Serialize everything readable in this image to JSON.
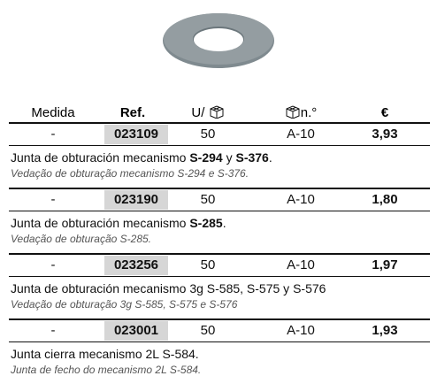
{
  "header": {
    "columns": [
      "Medida",
      "Ref.",
      "U/",
      "n.°",
      "€"
    ]
  },
  "rows": [
    {
      "medida": "-",
      "ref": "023109",
      "units": "50",
      "box": "A-10",
      "price": "3,93",
      "description": [
        {
          "text": "Junta de obturación mecanismo "
        },
        {
          "text": "S-294",
          "bold": true
        },
        {
          "text": " y "
        },
        {
          "text": "S-376",
          "bold": true
        },
        {
          "text": "."
        }
      ],
      "translation": "Vedação de obturação mecanismo S-294 e S-376."
    },
    {
      "medida": "-",
      "ref": "023190",
      "units": "50",
      "box": "A-10",
      "price": "1,80",
      "description": [
        {
          "text": "Junta de obturación mecanismo "
        },
        {
          "text": "S-285",
          "bold": true
        },
        {
          "text": "."
        }
      ],
      "translation": "Vedação de obturação S-285."
    },
    {
      "medida": "-",
      "ref": "023256",
      "units": "50",
      "box": "A-10",
      "price": "1,97",
      "description": [
        {
          "text": "Junta de obturación mecanismo 3g S-585, S-575 y S-576"
        }
      ],
      "translation": "Vedação de obturação 3g S-585, S-575 e S-576"
    },
    {
      "medida": "-",
      "ref": "023001",
      "units": "50",
      "box": "A-10",
      "price": "1,93",
      "description": [
        {
          "text": "Junta cierra mecanismo 2L S-584."
        }
      ],
      "translation": "Junta de fecho do mecanismo 2L S-584."
    }
  ]
}
